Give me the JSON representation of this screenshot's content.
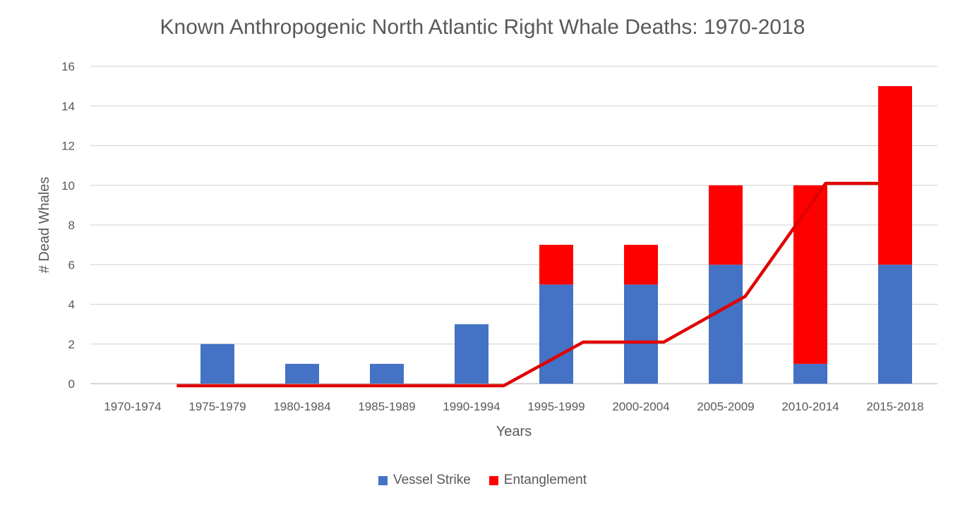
{
  "chart_data": {
    "type": "bar",
    "stacked": true,
    "title": "Known Anthropogenic North Atlantic Right Whale Deaths: 1970-2018",
    "xlabel": "Years",
    "ylabel": "# Dead Whales",
    "ylim": [
      0,
      16
    ],
    "yticks": [
      0,
      2,
      4,
      6,
      8,
      10,
      12,
      14,
      16
    ],
    "grid": true,
    "legend_position": "bottom",
    "categories": [
      "1970-1974",
      "1975-1979",
      "1980-1984",
      "1985-1989",
      "1990-1994",
      "1995-1999",
      "2000-2004",
      "2005-2009",
      "2010-2014",
      "2015-2018"
    ],
    "series": [
      {
        "name": "Vessel Strike",
        "color": "#4472C4",
        "values": [
          0,
          2,
          1,
          1,
          3,
          5,
          5,
          6,
          1,
          6
        ]
      },
      {
        "name": "Entanglement",
        "color": "#FF0000",
        "values": [
          0,
          0,
          0,
          0,
          0,
          2,
          2,
          4,
          9,
          9
        ]
      }
    ],
    "trend_line": {
      "color": "#E00000",
      "category_index": [
        0.52,
        4.38,
        5.32,
        6.27,
        7.23,
        8.18,
        8.81
      ],
      "values": [
        -0.1,
        -0.1,
        2.1,
        2.1,
        4.4,
        10.1,
        10.1
      ]
    }
  }
}
